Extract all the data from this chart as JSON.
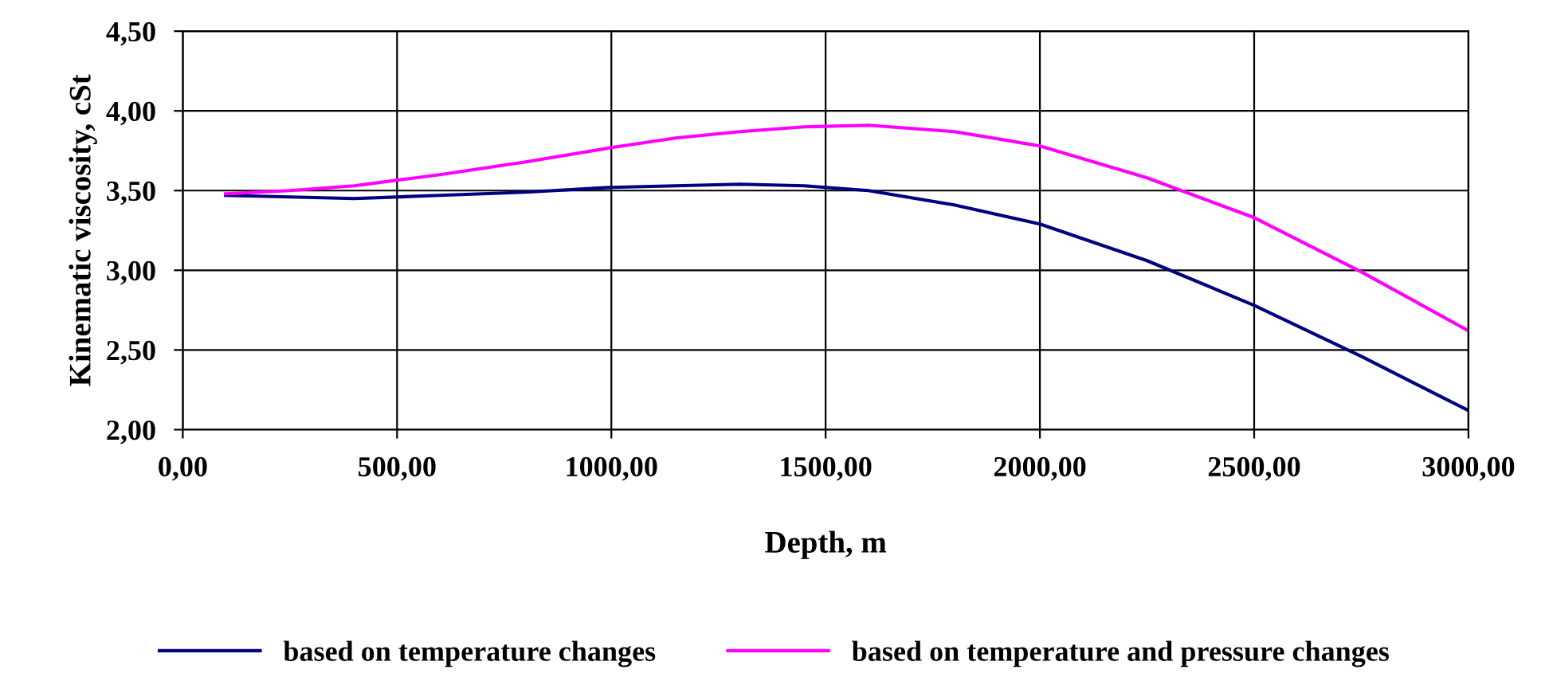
{
  "chart_data": {
    "type": "line",
    "xlabel": "Depth, m",
    "ylabel": "Kinematic viscosity, cSt",
    "xlim": [
      0,
      3000
    ],
    "ylim": [
      2,
      4.5
    ],
    "xticks": [
      {
        "value": 0,
        "label": "0,00"
      },
      {
        "value": 500,
        "label": "500,00"
      },
      {
        "value": 1000,
        "label": "1000,00"
      },
      {
        "value": 1500,
        "label": "1500,00"
      },
      {
        "value": 2000,
        "label": "2000,00"
      },
      {
        "value": 2500,
        "label": "2500,00"
      },
      {
        "value": 3000,
        "label": "3000,00"
      }
    ],
    "yticks": [
      {
        "value": 2,
        "label": "2,00"
      },
      {
        "value": 2.5,
        "label": "2,50"
      },
      {
        "value": 3,
        "label": "3,00"
      },
      {
        "value": 3.5,
        "label": "3,50"
      },
      {
        "value": 4,
        "label": "4,00"
      },
      {
        "value": 4.5,
        "label": "4,50"
      }
    ],
    "x": [
      100,
      250,
      400,
      600,
      800,
      1000,
      1150,
      1300,
      1450,
      1600,
      1800,
      2000,
      2250,
      2500,
      2750,
      3000
    ],
    "series": [
      {
        "name": "based on temperature changes",
        "color": "#000080",
        "values": [
          3.47,
          3.46,
          3.45,
          3.47,
          3.49,
          3.52,
          3.53,
          3.54,
          3.53,
          3.5,
          3.41,
          3.29,
          3.06,
          2.78,
          2.46,
          2.12
        ]
      },
      {
        "name": "based on temperature and pressure changes",
        "color": "#ff00ff",
        "values": [
          3.48,
          3.5,
          3.53,
          3.6,
          3.68,
          3.77,
          3.83,
          3.87,
          3.9,
          3.91,
          3.87,
          3.78,
          3.58,
          3.33,
          2.99,
          2.62
        ]
      }
    ],
    "grid": true,
    "legend": "bottom",
    "marker": "none",
    "line_style": "solid"
  }
}
